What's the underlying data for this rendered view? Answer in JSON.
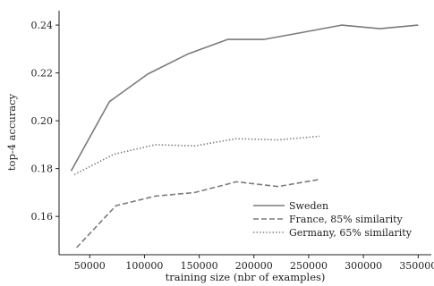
{
  "chart_data": {
    "type": "line",
    "title": "",
    "xlabel": "training size (nbr of examples)",
    "ylabel": "top-4 accuracy",
    "xlim": [
      22000,
      362000
    ],
    "ylim": [
      0.144,
      0.246
    ],
    "xticks": [
      50000,
      100000,
      150000,
      200000,
      250000,
      300000,
      350000
    ],
    "xtick_labels": [
      "50000",
      "100000",
      "150000",
      "200000",
      "250000",
      "300000",
      "350000"
    ],
    "yticks": [
      0.16,
      0.18,
      0.2,
      0.22,
      0.24
    ],
    "ytick_labels": [
      "0.16",
      "0.18",
      "0.20",
      "0.22",
      "0.24"
    ],
    "grid": false,
    "legend_position": "lower-right",
    "series": [
      {
        "name": "Sweden",
        "line_style": "solid",
        "color": "#7a7a7a",
        "x": [
          33000,
          68000,
          103000,
          140000,
          176000,
          209000,
          245000,
          280000,
          315000,
          350000
        ],
        "y": [
          0.179,
          0.208,
          0.2195,
          0.228,
          0.234,
          0.234,
          0.237,
          0.24,
          0.2385,
          0.24
        ]
      },
      {
        "name": "France, 85% similarity",
        "line_style": "dashed",
        "color": "#7a7a7a",
        "x": [
          38000,
          74000,
          110000,
          146000,
          184000,
          222000,
          260000
        ],
        "y": [
          0.147,
          0.1645,
          0.1685,
          0.17,
          0.1745,
          0.1725,
          0.1755
        ]
      },
      {
        "name": "Germany, 65% similarity",
        "line_style": "dotted",
        "color": "#7a7a7a",
        "x": [
          36000,
          72000,
          110000,
          146000,
          184000,
          222000,
          260000
        ],
        "y": [
          0.1775,
          0.186,
          0.19,
          0.1895,
          0.1925,
          0.192,
          0.1935
        ]
      }
    ]
  }
}
